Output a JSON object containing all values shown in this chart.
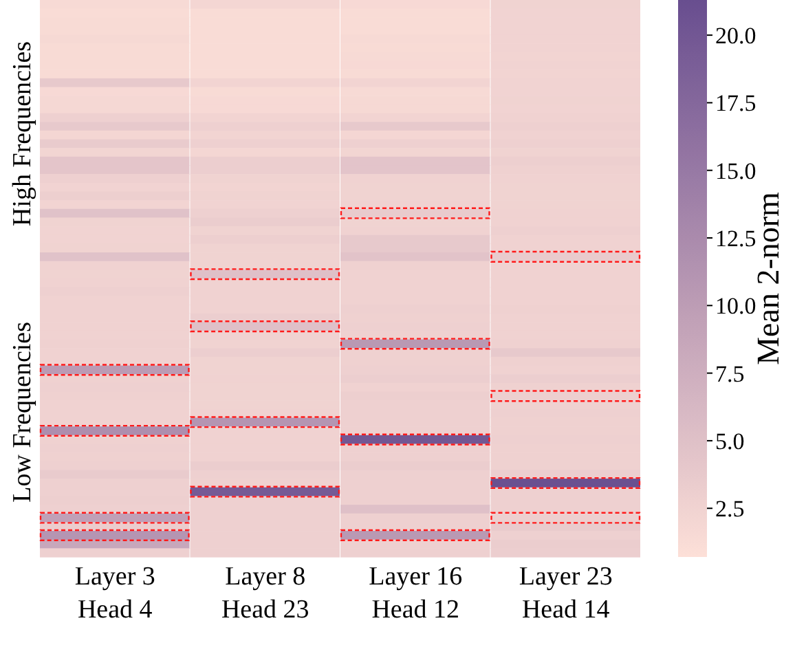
{
  "chart_data": {
    "type": "heatmap",
    "categories": [
      "Layer 3\nHead 4",
      "Layer 8\nHead 23",
      "Layer 16\nHead 12",
      "Layer 23\nHead 14"
    ],
    "clabel": "Mean 2-norm",
    "clim": [
      0.7,
      21.3
    ],
    "cticks": [
      2.5,
      {
        "value": 5,
        "label": "5.0"
      },
      7.5,
      {
        "value": 10,
        "label": "10.0"
      },
      12.5,
      {
        "value": 15,
        "label": "15.0"
      },
      17.5,
      {
        "value": 20,
        "label": "20.0"
      }
    ],
    "y_categories": [
      null,
      null,
      null,
      null,
      null,
      null,
      null,
      null,
      null,
      null,
      null,
      null,
      null,
      null,
      null,
      null,
      null,
      null,
      null,
      null,
      null,
      null,
      null,
      null,
      null,
      null,
      null,
      null,
      null,
      null,
      null,
      null,
      null,
      null,
      null,
      null,
      null,
      null,
      null,
      null,
      null,
      null,
      null,
      null,
      null,
      null,
      null,
      null,
      null,
      null,
      null,
      null,
      null,
      null,
      null,
      null,
      null,
      null,
      null,
      null,
      null,
      null,
      null,
      null
    ],
    "annotations": [
      "High Frequencies",
      "Low Frequencies"
    ],
    "cells": [
      [
        1.5,
        2.0,
        1.6,
        2.5
      ],
      [
        1.3,
        1.2,
        1.3,
        2.4
      ],
      [
        1.4,
        1.2,
        1.3,
        2.4
      ],
      [
        1.4,
        1.2,
        1.3,
        2.4
      ],
      [
        1.7,
        1.2,
        1.5,
        2.4
      ],
      [
        1.4,
        1.2,
        1.4,
        2.4
      ],
      [
        1.4,
        1.2,
        1.5,
        2.3
      ],
      [
        1.4,
        1.2,
        1.6,
        2.4
      ],
      [
        1.4,
        1.2,
        1.4,
        2.3
      ],
      [
        3.8,
        2.3,
        2.3,
        2.4
      ],
      [
        1.6,
        1.4,
        1.5,
        2.4
      ],
      [
        1.8,
        1.6,
        1.7,
        2.5
      ],
      [
        1.8,
        1.6,
        1.7,
        2.4
      ],
      [
        2.8,
        2.3,
        2.3,
        2.6
      ],
      [
        3.8,
        2.8,
        3.8,
        2.8
      ],
      [
        2.0,
        2.3,
        2.0,
        2.6
      ],
      [
        3.6,
        2.8,
        2.8,
        2.8
      ],
      [
        2.2,
        2.0,
        2.2,
        2.5
      ],
      [
        4.3,
        3.2,
        4.5,
        3.0
      ],
      [
        4.3,
        3.2,
        4.5,
        2.7
      ],
      [
        2.8,
        2.5,
        2.6,
        2.6
      ],
      [
        2.4,
        2.3,
        2.5,
        2.5
      ],
      [
        3.0,
        2.5,
        2.5,
        2.5
      ],
      [
        2.3,
        2.4,
        2.6,
        2.5
      ],
      [
        4.8,
        2.8,
        3.5,
        2.6
      ],
      [
        2.5,
        3.3,
        2.5,
        2.6
      ],
      [
        2.4,
        2.5,
        2.6,
        2.8
      ],
      [
        2.4,
        3.0,
        3.8,
        2.6
      ],
      [
        2.5,
        2.5,
        3.8,
        2.6
      ],
      [
        4.8,
        2.5,
        4.6,
        3.5
      ],
      [
        2.6,
        2.5,
        2.7,
        2.6
      ],
      [
        2.5,
        5.0,
        2.6,
        2.6
      ],
      [
        2.6,
        2.6,
        2.6,
        2.6
      ],
      [
        2.8,
        2.6,
        2.6,
        2.6
      ],
      [
        2.6,
        2.6,
        2.6,
        2.6
      ],
      [
        2.6,
        2.6,
        2.8,
        2.7
      ],
      [
        2.6,
        3.2,
        2.7,
        2.6
      ],
      [
        2.6,
        5.0,
        2.8,
        2.6
      ],
      [
        2.6,
        2.6,
        2.7,
        2.6
      ],
      [
        2.7,
        2.5,
        10.5,
        2.7
      ],
      [
        2.6,
        3.2,
        2.7,
        3.8
      ],
      [
        2.6,
        2.5,
        2.7,
        2.7
      ],
      [
        10.2,
        2.5,
        2.8,
        2.6
      ],
      [
        2.7,
        2.6,
        3.2,
        3.2
      ],
      [
        2.8,
        2.5,
        2.6,
        2.7
      ],
      [
        2.7,
        2.5,
        3.0,
        3.0
      ],
      [
        2.6,
        2.5,
        2.8,
        2.7
      ],
      [
        2.6,
        2.6,
        2.8,
        2.8
      ],
      [
        2.6,
        11.0,
        2.8,
        2.7
      ],
      [
        12.0,
        2.6,
        2.8,
        2.7
      ],
      [
        2.7,
        2.6,
        20.0,
        2.8
      ],
      [
        2.8,
        2.6,
        2.8,
        2.7
      ],
      [
        2.7,
        2.6,
        2.8,
        2.7
      ],
      [
        2.8,
        3.3,
        3.3,
        2.7
      ],
      [
        3.6,
        2.8,
        2.9,
        3.2
      ],
      [
        2.8,
        2.7,
        2.8,
        21.0
      ],
      [
        2.8,
        19.5,
        2.8,
        2.8
      ],
      [
        3.0,
        2.8,
        2.9,
        2.8
      ],
      [
        2.9,
        2.8,
        5.0,
        2.8
      ],
      [
        9.5,
        2.8,
        2.9,
        3.0
      ],
      [
        3.3,
        2.8,
        2.9,
        3.5
      ],
      [
        11.0,
        2.8,
        10.5,
        2.9
      ],
      [
        8.5,
        2.8,
        2.9,
        3.3
      ],
      [
        2.8,
        2.8,
        2.9,
        3.2
      ]
    ]
  }
}
